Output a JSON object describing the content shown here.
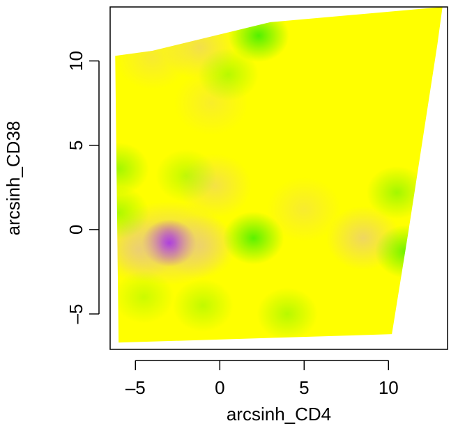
{
  "chart_data": {
    "type": "heatmap",
    "title": "",
    "xlabel": "arcsinh_CD4",
    "ylabel": "arcsinh_CD38",
    "xlim": [
      -6.5,
      13.5
    ],
    "ylim": [
      -7.1,
      13.2
    ],
    "x_ticks": [
      -5,
      0,
      5,
      10
    ],
    "x_tick_labels": [
      "–5",
      "0",
      "5",
      "10"
    ],
    "y_ticks": [
      -5,
      0,
      5,
      10
    ],
    "y_tick_labels": [
      "–5",
      "0",
      "5",
      "10"
    ],
    "grid": false,
    "colors": {
      "high": "#ffff00",
      "mid_green": "#33ee00",
      "mid_tan": "#e8c58a",
      "low": "#a020f0"
    },
    "surface_region": [
      [
        -6.2,
        10.3
      ],
      [
        -4.0,
        10.6
      ],
      [
        3.0,
        12.3
      ],
      [
        13.2,
        13.2
      ],
      [
        12.9,
        11.0
      ],
      [
        11.2,
        0.0
      ],
      [
        10.2,
        -6.2
      ],
      [
        -6.0,
        -6.7
      ]
    ],
    "features": [
      {
        "kind": "purple",
        "x": -3.0,
        "y": -0.8,
        "strength": 1.0
      },
      {
        "kind": "tan",
        "x": -4.8,
        "y": -1.2,
        "strength": 0.7
      },
      {
        "kind": "tan",
        "x": -1.2,
        "y": -1.0,
        "strength": 0.6
      },
      {
        "kind": "tan",
        "x": -0.3,
        "y": 2.6,
        "strength": 0.5
      },
      {
        "kind": "tan",
        "x": 8.5,
        "y": -0.5,
        "strength": 0.7
      },
      {
        "kind": "tan",
        "x": 5.0,
        "y": 1.2,
        "strength": 0.35
      },
      {
        "kind": "tan",
        "x": -1.2,
        "y": 10.8,
        "strength": 0.55
      },
      {
        "kind": "tan",
        "x": -4.0,
        "y": 10.2,
        "strength": 0.35
      },
      {
        "kind": "tan",
        "x": -0.5,
        "y": 7.5,
        "strength": 0.3
      },
      {
        "kind": "green",
        "x": 2.3,
        "y": 11.5,
        "strength": 0.85
      },
      {
        "kind": "green",
        "x": 0.5,
        "y": 9.2,
        "strength": 0.35
      },
      {
        "kind": "green",
        "x": 2.0,
        "y": -0.5,
        "strength": 0.8
      },
      {
        "kind": "green",
        "x": 11.0,
        "y": -1.3,
        "strength": 0.7
      },
      {
        "kind": "green",
        "x": 10.5,
        "y": 2.2,
        "strength": 0.45
      },
      {
        "kind": "green",
        "x": -6.0,
        "y": 3.6,
        "strength": 0.45
      },
      {
        "kind": "green",
        "x": -6.0,
        "y": 1.0,
        "strength": 0.4
      },
      {
        "kind": "green",
        "x": -2.0,
        "y": 3.2,
        "strength": 0.3
      },
      {
        "kind": "green",
        "x": 4.0,
        "y": -5.0,
        "strength": 0.35
      },
      {
        "kind": "green",
        "x": -1.0,
        "y": -4.5,
        "strength": 0.3
      },
      {
        "kind": "green",
        "x": -4.5,
        "y": -4.0,
        "strength": 0.25
      }
    ]
  }
}
